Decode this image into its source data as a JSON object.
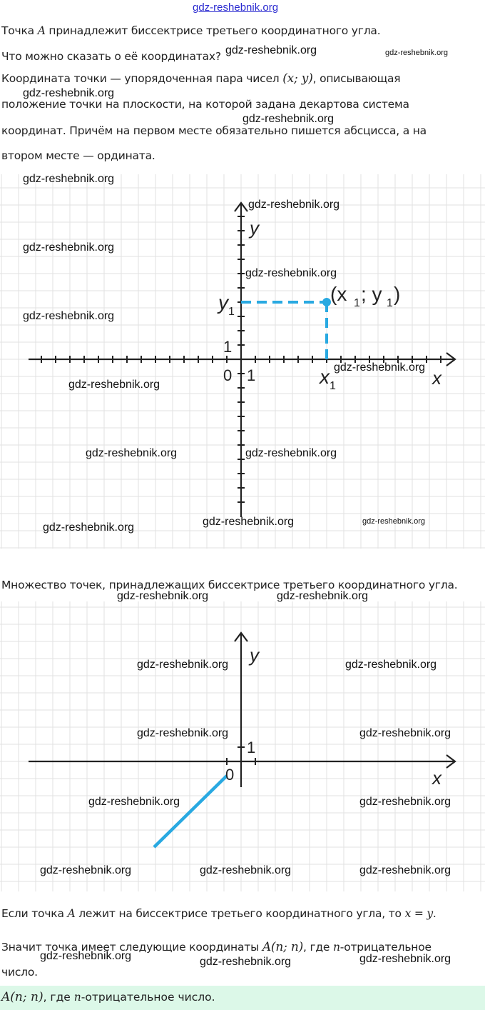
{
  "watermark_top": "gdz-reshebnik.org",
  "watermark": "gdz-reshebnik.org",
  "text": {
    "l1a": "Точка ",
    "l1m": "A",
    "l1b": " принадлежит биссектрисе третьего координатного угла.",
    "l2": "Что можно сказать о её координатах?",
    "l3a": "Координата точки — упорядоченная пара чисел ",
    "l3m": "(x; y)",
    "l3b": ", описывающая",
    "l4": "положение точки на плоскости, на которой задана декартова система",
    "l5": "координат. Причём на первом месте обязательно пишется абсцисса, а на",
    "l6": "втором месте — ордината.",
    "l7": "Множество точек, принадлежащих биссектрисе третьего координатного угла.",
    "l8a": "Если точка ",
    "l8m": "A",
    "l8b": " лежит на биссектрисе третьего координатного угла, то ",
    "l8m2": "x = y",
    "l8c": ".",
    "l9a": "Значит точка имеет следующие координаты ",
    "l9m": "A(n;  n)",
    "l9b": ", где ",
    "l9m2": "n",
    "l9c": "-отрицательное",
    "l10": "число."
  },
  "answer": {
    "m": "A(n;  n)",
    "a": ", где ",
    "m2": "n",
    "b": "-отрицательное число."
  },
  "figure1": {
    "x_label": "x",
    "y_label": "y",
    "origin": "0",
    "one_x": "1",
    "one_y": "1",
    "x1": "x",
    "y1": "y",
    "sub": "1",
    "point_label_open": "(x",
    "point_label_mid": " ; y",
    "point_label_close": ")"
  },
  "figure2": {
    "x_label": "x",
    "y_label": "y",
    "origin": "0",
    "one_y": "1"
  },
  "colors": {
    "accent": "#29a9e1",
    "grid": "#e2e2e2",
    "answer_bg": "#dcf8e8",
    "watermark_link": "#2a2ad0"
  }
}
